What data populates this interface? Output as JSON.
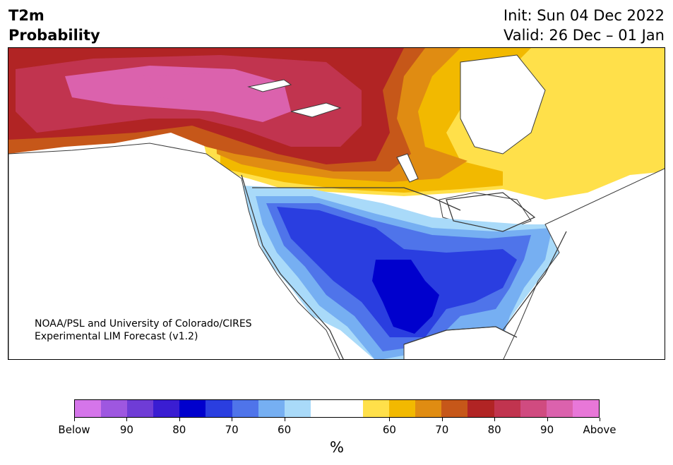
{
  "header": {
    "title_line1": "T2m",
    "title_line2": "Probability",
    "init": "Init: Sun 04 Dec 2022",
    "valid": "Valid: 26 Dec – 01 Jan"
  },
  "credit": {
    "line1": "NOAA/PSL and University of Colorado/CIRES",
    "line2": "Experimental LIM Forecast (v1.2)"
  },
  "colorbar": {
    "colors": [
      "#d575ea",
      "#9e57e0",
      "#6f3cd6",
      "#3a1dd2",
      "#0000cd",
      "#2a3ee0",
      "#4f74ea",
      "#76aff2",
      "#a9daf9",
      "#ffffff",
      "#ffffff",
      "#ffe04a",
      "#f2b900",
      "#e08c12",
      "#c65719",
      "#b12424",
      "#c1344f",
      "#d04b80",
      "#db62ad",
      "#e877d8"
    ],
    "labels": [
      "Below",
      "90",
      "80",
      "70",
      "60",
      "60",
      "70",
      "80",
      "90",
      "Above"
    ],
    "units": "%"
  },
  "map": {
    "colors": {
      "ocean": "#ffffff",
      "outline": "#3a3a3a",
      "above_90": "#db62ad",
      "above_80": "#c1344f",
      "above_70": "#b12424",
      "above_60": "#c65719",
      "above_55": "#e08c12",
      "above_50": "#f2b900",
      "above_45": "#ffe04a",
      "below_45": "#a9daf9",
      "below_50": "#76aff2",
      "below_55": "#4f74ea",
      "below_60": "#2a3ee0",
      "below_70": "#0000cd"
    }
  }
}
